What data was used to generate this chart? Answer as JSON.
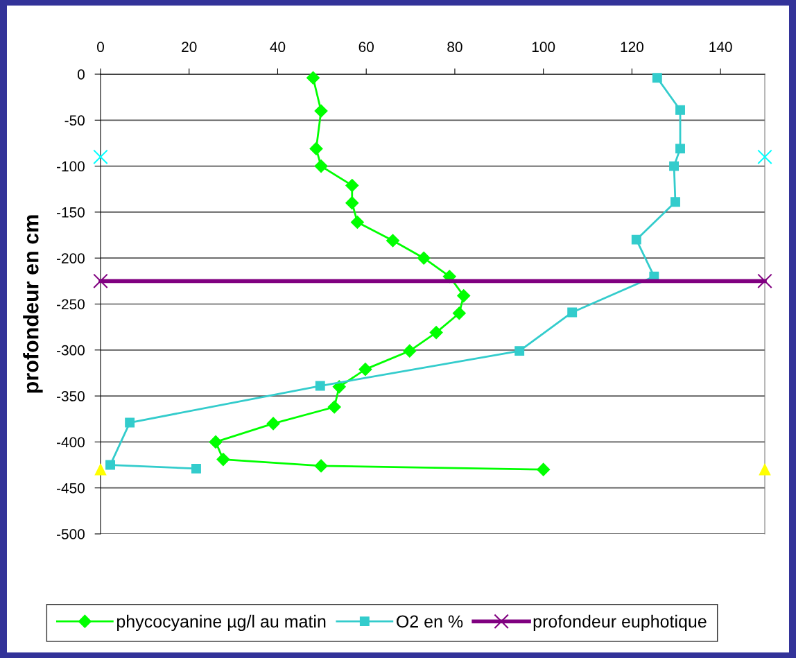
{
  "chart_data": {
    "type": "line",
    "ylabel": "profondeur en cm",
    "xlim": [
      0,
      150
    ],
    "xticks": [
      0,
      20,
      40,
      60,
      80,
      100,
      120,
      140
    ],
    "ylim": [
      -500,
      0
    ],
    "yticks": [
      -500,
      -450,
      -400,
      -350,
      -300,
      -250,
      -200,
      -150,
      -100,
      -50,
      0
    ],
    "grid": "y",
    "legend": "bottom",
    "series": [
      {
        "name": "phycocyanine µg/l au matin",
        "color": "#00ff00",
        "marker": "diamond",
        "line_style": "solid",
        "x": [
          48,
          49.8,
          48.7,
          49.8,
          56.8,
          56.8,
          58,
          66,
          73,
          78.8,
          82,
          81,
          75.8,
          69.8,
          59.8,
          53.9,
          52.8,
          39,
          26,
          27.7,
          49.8,
          100
        ],
        "values": [
          -4,
          -40,
          -81,
          -100,
          -121,
          -140,
          -161,
          -181,
          -200,
          -220,
          -241,
          -260,
          -281,
          -301,
          -321,
          -340,
          -362,
          -380,
          -400,
          -419,
          -426,
          -430
        ]
      },
      {
        "name": "O2 en %",
        "color": "#33cccc",
        "marker": "square",
        "line_style": "solid",
        "x": [
          125.7,
          130.9,
          130.9,
          129.5,
          129.8,
          121,
          125,
          106.5,
          94.6,
          49.6,
          6.6,
          2.2,
          21.6
        ],
        "values": [
          -4,
          -39,
          -81,
          -100,
          -139,
          -180,
          -220,
          -259,
          -301,
          -339,
          -379,
          -425,
          -429
        ]
      },
      {
        "name": "profondeur euphotique",
        "color": "#800080",
        "marker": "cross",
        "line_style": "solid",
        "x": [
          0,
          150
        ],
        "values": [
          -225,
          -225
        ]
      },
      {
        "type": "scatter",
        "color": "#00ffff",
        "marker": "cross",
        "x": [
          0,
          150
        ],
        "values": [
          -90,
          -90
        ]
      },
      {
        "type": "scatter",
        "color": "#ffff00",
        "marker": "triangle",
        "x": [
          0,
          150
        ],
        "values": [
          -430,
          -430
        ]
      }
    ]
  }
}
